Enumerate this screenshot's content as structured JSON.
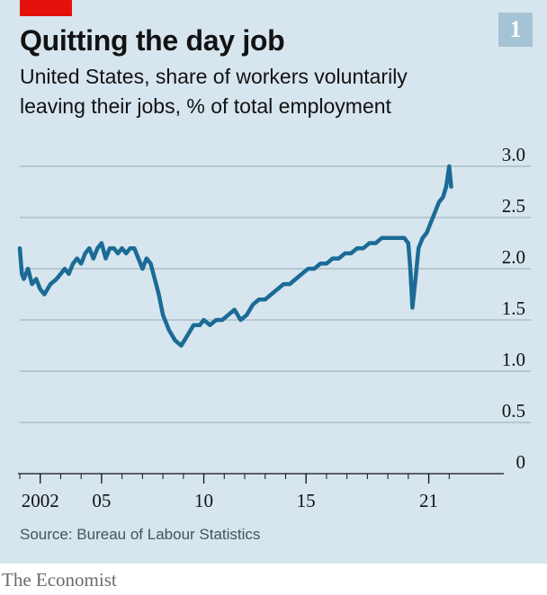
{
  "header": {
    "chart_number": "1",
    "title": "Quitting the day job",
    "subtitle_line1": "United States, share of workers voluntarily",
    "subtitle_line2": "leaving their jobs, % of total employment"
  },
  "footer": {
    "source": "Source: Bureau of Labour Statistics",
    "brand": "The Economist"
  },
  "colors": {
    "background": "#d6e5ee",
    "line": "#1b6b96",
    "grid": "#97aab6",
    "accent_red": "#e3120b",
    "badge": "#a6c3d6"
  },
  "chart_data": {
    "type": "line",
    "title": "Quitting the day job",
    "subtitle": "United States, share of workers voluntarily leaving their jobs, % of total employment",
    "xlabel": "",
    "ylabel": "",
    "ylim": [
      0,
      3.0
    ],
    "xlim": [
      2001.0,
      2023.0
    ],
    "y_ticks": [
      0,
      0.5,
      1.0,
      1.5,
      2.0,
      2.5,
      3.0
    ],
    "y_tick_labels": [
      "0",
      "0.5",
      "1.0",
      "1.5",
      "2.0",
      "2.5",
      "3.0"
    ],
    "x_ticks": [
      2002,
      2005,
      2010,
      2015,
      2021
    ],
    "x_tick_labels": [
      "2002",
      "05",
      "10",
      "15",
      "21"
    ],
    "y_axis_side": "right",
    "grid": "horizontal",
    "legend": "none",
    "series": [
      {
        "x": [
          2001.0,
          2001.1,
          2001.2,
          2001.4,
          2001.6,
          2001.8,
          2002.0,
          2002.2,
          2002.5,
          2002.8,
          2003.0,
          2003.2,
          2003.4,
          2003.6,
          2003.8,
          2004.0,
          2004.2,
          2004.4,
          2004.6,
          2004.8,
          2005.0,
          2005.2,
          2005.4,
          2005.6,
          2005.8,
          2006.0,
          2006.2,
          2006.4,
          2006.6,
          2006.8,
          2007.0,
          2007.2,
          2007.4,
          2007.6,
          2007.8,
          2008.0,
          2008.3,
          2008.6,
          2008.9,
          2009.2,
          2009.5,
          2009.8,
          2010.0,
          2010.3,
          2010.6,
          2010.9,
          2011.2,
          2011.5,
          2011.8,
          2012.1,
          2012.4,
          2012.7,
          2013.0,
          2013.3,
          2013.6,
          2013.9,
          2014.2,
          2014.5,
          2014.8,
          2015.1,
          2015.4,
          2015.7,
          2016.0,
          2016.3,
          2016.6,
          2016.9,
          2017.2,
          2017.5,
          2017.8,
          2018.1,
          2018.4,
          2018.7,
          2019.0,
          2019.3,
          2019.6,
          2019.8,
          2020.0,
          2020.1,
          2020.2,
          2020.35,
          2020.5,
          2020.7,
          2020.9,
          2021.1,
          2021.3,
          2021.5,
          2021.7,
          2021.85,
          2022.0,
          2022.1
        ],
        "y": [
          2.2,
          1.95,
          1.9,
          2.0,
          1.85,
          1.9,
          1.8,
          1.75,
          1.85,
          1.9,
          1.95,
          2.0,
          1.95,
          2.05,
          2.1,
          2.05,
          2.15,
          2.2,
          2.1,
          2.2,
          2.25,
          2.1,
          2.2,
          2.2,
          2.15,
          2.2,
          2.15,
          2.2,
          2.2,
          2.1,
          2.0,
          2.1,
          2.05,
          1.9,
          1.75,
          1.55,
          1.4,
          1.3,
          1.25,
          1.35,
          1.45,
          1.45,
          1.5,
          1.45,
          1.5,
          1.5,
          1.55,
          1.6,
          1.5,
          1.55,
          1.65,
          1.7,
          1.7,
          1.75,
          1.8,
          1.85,
          1.85,
          1.9,
          1.95,
          2.0,
          2.0,
          2.05,
          2.05,
          2.1,
          2.1,
          2.15,
          2.15,
          2.2,
          2.2,
          2.25,
          2.25,
          2.3,
          2.3,
          2.3,
          2.3,
          2.3,
          2.25,
          2.0,
          1.62,
          1.9,
          2.2,
          2.3,
          2.35,
          2.45,
          2.55,
          2.65,
          2.7,
          2.8,
          3.0,
          2.8
        ]
      }
    ]
  }
}
